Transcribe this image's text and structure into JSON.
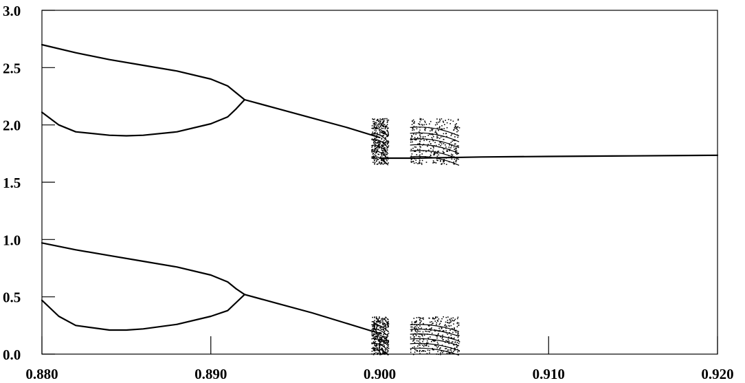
{
  "chart_data": {
    "type": "scatter",
    "title": "",
    "xlabel": "",
    "ylabel": "",
    "xlim": [
      0.88,
      0.92
    ],
    "ylim": [
      0.0,
      3.0
    ],
    "x_ticks": [
      0.88,
      0.89,
      0.9,
      0.91,
      0.92
    ],
    "y_ticks": [
      0.0,
      0.5,
      1.0,
      1.5,
      2.0,
      2.5,
      3.0
    ],
    "x_tick_labels": [
      "0.880",
      "0.890",
      "0.900",
      "0.910",
      "0.920"
    ],
    "y_tick_labels": [
      "0.0",
      "0.5",
      "1.0",
      "1.5",
      "2.0",
      "2.5",
      "3.0"
    ],
    "grid": false,
    "legend": "none",
    "color": "#000000",
    "series": [
      {
        "x": [
          0.88,
          0.882,
          0.884,
          0.886,
          0.888,
          0.89,
          0.891,
          0.8915,
          0.892
        ],
        "y": [
          2.7,
          2.63,
          2.57,
          2.52,
          2.47,
          2.4,
          2.34,
          2.28,
          2.22
        ]
      },
      {
        "x": [
          0.88,
          0.881,
          0.882,
          0.884,
          0.885,
          0.886,
          0.888,
          0.89,
          0.891,
          0.8915,
          0.892
        ],
        "y": [
          2.11,
          2.0,
          1.94,
          1.91,
          1.905,
          1.91,
          1.94,
          2.01,
          2.07,
          2.14,
          2.22
        ]
      },
      {
        "x": [
          0.892,
          0.894,
          0.896,
          0.898,
          0.9
        ],
        "y": [
          2.22,
          2.14,
          2.06,
          1.98,
          1.89
        ]
      },
      {
        "x": [
          0.9,
          0.902,
          0.904,
          0.906,
          0.91,
          0.915,
          0.92
        ],
        "y": [
          1.71,
          1.71,
          1.715,
          1.72,
          1.725,
          1.73,
          1.735
        ]
      },
      {
        "x": [
          0.88,
          0.882,
          0.884,
          0.886,
          0.888,
          0.89,
          0.891,
          0.8915,
          0.892
        ],
        "y": [
          0.97,
          0.91,
          0.86,
          0.81,
          0.76,
          0.69,
          0.63,
          0.57,
          0.52
        ]
      },
      {
        "x": [
          0.88,
          0.881,
          0.882,
          0.884,
          0.885,
          0.886,
          0.888,
          0.89,
          0.891,
          0.8915,
          0.892
        ],
        "y": [
          0.47,
          0.33,
          0.25,
          0.21,
          0.21,
          0.22,
          0.26,
          0.33,
          0.38,
          0.45,
          0.52
        ]
      },
      {
        "x": [
          0.892,
          0.894,
          0.896,
          0.898,
          0.9
        ],
        "y": [
          0.52,
          0.44,
          0.36,
          0.27,
          0.18
        ]
      }
    ],
    "chaotic_bands": [
      {
        "x_range": [
          0.8995,
          0.9005
        ],
        "y_range": [
          1.66,
          2.06
        ]
      },
      {
        "x_range": [
          0.9018,
          0.9047
        ],
        "y_range": [
          1.66,
          2.07
        ]
      },
      {
        "x_range": [
          0.8995,
          0.9005
        ],
        "y_range": [
          0.0,
          0.33
        ]
      },
      {
        "x_range": [
          0.9018,
          0.9047
        ],
        "y_range": [
          0.0,
          0.33
        ]
      }
    ]
  }
}
